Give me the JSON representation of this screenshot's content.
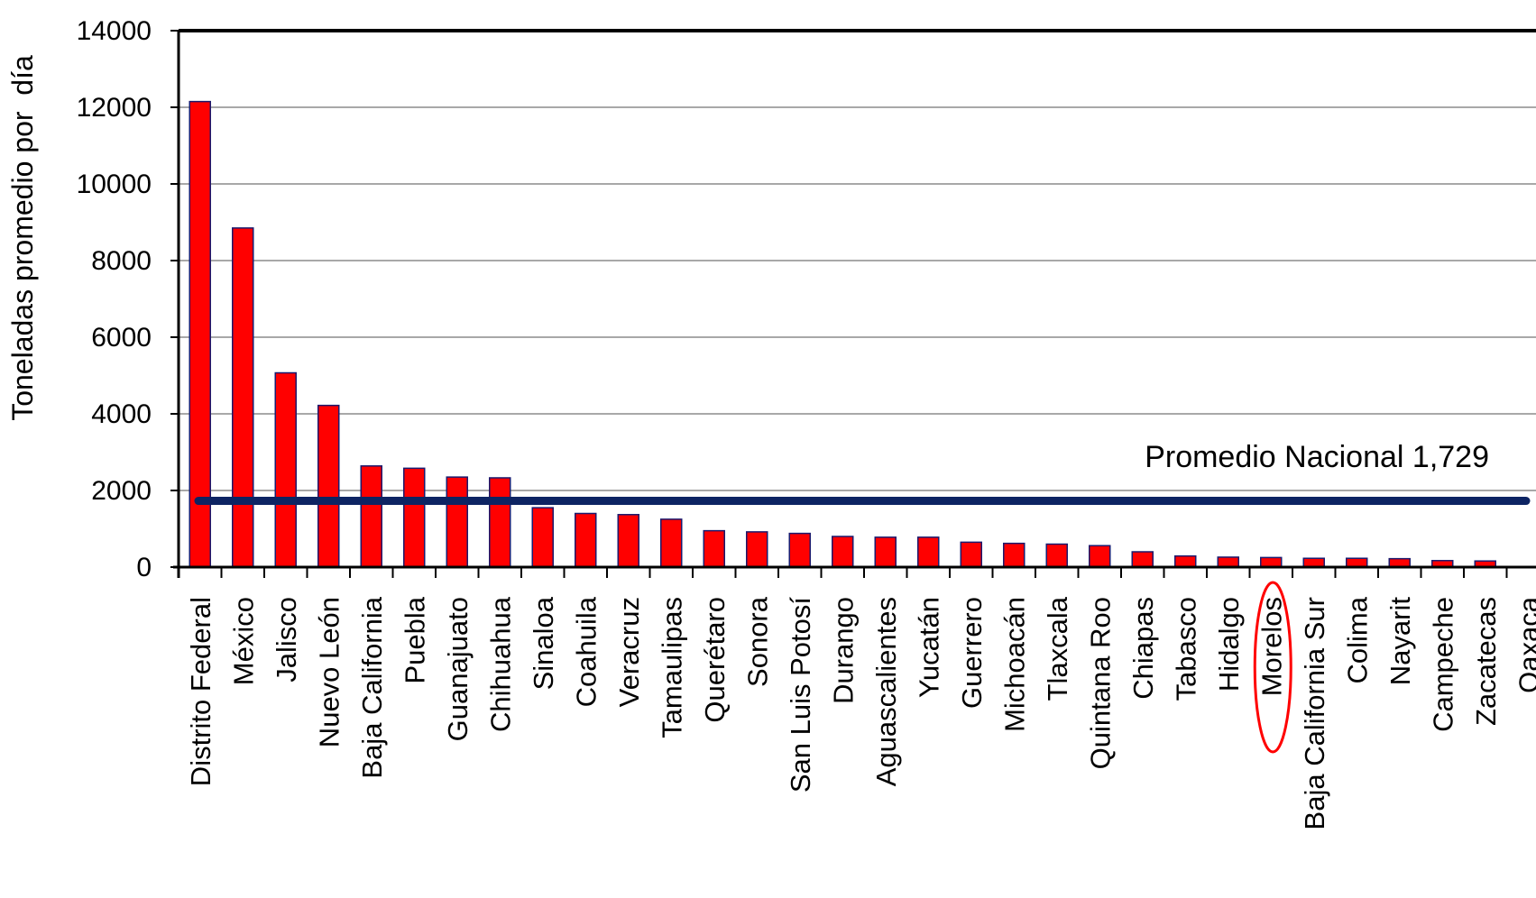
{
  "chart_data": {
    "type": "bar",
    "ylabel": "Toneladas promedio por  día",
    "ylim": [
      0,
      14000
    ],
    "yticks": [
      0,
      2000,
      4000,
      6000,
      8000,
      10000,
      12000,
      14000
    ],
    "grid": true,
    "categories": [
      "Distrito Federal",
      "México",
      "Jalisco",
      "Nuevo León",
      "Baja California",
      "Puebla",
      "Guanajuato",
      "Chihuahua",
      "Sinaloa",
      "Coahuila",
      "Veracruz",
      "Tamaulipas",
      "Querétaro",
      "Sonora",
      "San Luis Potosí",
      "Durango",
      "Aguascalientes",
      "Yucatán",
      "Guerrero",
      "Michoacán",
      "Tlaxcala",
      "Quintana Roo",
      "Chiapas",
      "Tabasco",
      "Hidalgo",
      "Morelos",
      "Baja California Sur",
      "Colima",
      "Nayarit",
      "Campeche",
      "Zacatecas",
      "Oaxaca"
    ],
    "values": [
      12150,
      8850,
      5070,
      4220,
      2640,
      2580,
      2350,
      2330,
      1550,
      1400,
      1370,
      1250,
      950,
      920,
      880,
      800,
      780,
      780,
      650,
      620,
      600,
      560,
      400,
      290,
      260,
      250,
      230,
      230,
      220,
      170,
      160,
      0
    ],
    "colors": {
      "bar": "#ff0000",
      "bar_edge": "#1a1a6e",
      "average_line": "#0d2463",
      "highlight": "#ff0000",
      "grid": "#8c8c8c"
    },
    "average_line": {
      "value": 1729,
      "label": "Promedio Nacional 1,729"
    },
    "highlight": {
      "category": "Morelos",
      "shape": "ellipse"
    }
  }
}
